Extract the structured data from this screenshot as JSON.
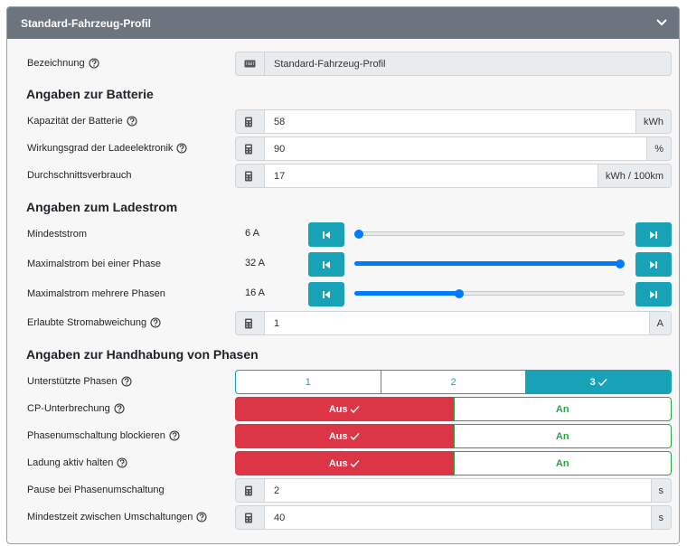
{
  "header": {
    "title": "Standard-Fahrzeug-Profil"
  },
  "name": {
    "label": "Bezeichnung",
    "help": true,
    "value": "Standard-Fahrzeug-Profil"
  },
  "battery": {
    "title": "Angaben zur Batterie",
    "fields": [
      {
        "label": "Kapazität der Batterie",
        "help": true,
        "value": 58,
        "unit": "kWh"
      },
      {
        "label": "Wirkungsgrad der Ladeelektronik",
        "help": true,
        "value": 90,
        "unit": "%"
      },
      {
        "label": "Durchschnittsverbrauch",
        "help": false,
        "value": 17,
        "unit": "kWh / 100km"
      }
    ]
  },
  "current": {
    "title": "Angaben zum Ladestrom",
    "slider_range": [
      6,
      32
    ],
    "sliders": [
      {
        "label": "Mindeststrom",
        "value": {
          "value": 6,
          "label": "6 A"
        }
      },
      {
        "label": "Maximalstrom bei einer Phase",
        "value": {
          "value": 32,
          "label": "32 A"
        }
      },
      {
        "label": "Maximalstrom mehrere Phasen",
        "value": {
          "value": 16,
          "label": "16 A"
        }
      }
    ],
    "fields": [
      {
        "label": "Erlaubte Stromabweichung",
        "help": true,
        "value": 1,
        "unit": "A"
      }
    ]
  },
  "phases": {
    "title": "Angaben zur Handhabung von Phasen",
    "supported": {
      "label": "Unterstützte Phasen",
      "help": true,
      "options": [
        "1",
        "2",
        "3"
      ],
      "selected": 2
    },
    "toggles": [
      {
        "label": "CP-Unterbrechung",
        "help": true,
        "options": [
          "Aus",
          "An"
        ],
        "selected": 0
      },
      {
        "label": "Phasenumschaltung blockieren",
        "help": true,
        "options": [
          "Aus",
          "An"
        ],
        "selected": 0
      },
      {
        "label": "Ladung aktiv halten",
        "help": true,
        "options": [
          "Aus",
          "An"
        ],
        "selected": 0
      }
    ],
    "fields": [
      {
        "label": "Pause bei Phasenumschaltung",
        "help": false,
        "value": 2,
        "unit": "s"
      },
      {
        "label": "Mindestzeit zwischen Umschaltungen",
        "help": true,
        "value": 40,
        "unit": "s"
      }
    ]
  }
}
